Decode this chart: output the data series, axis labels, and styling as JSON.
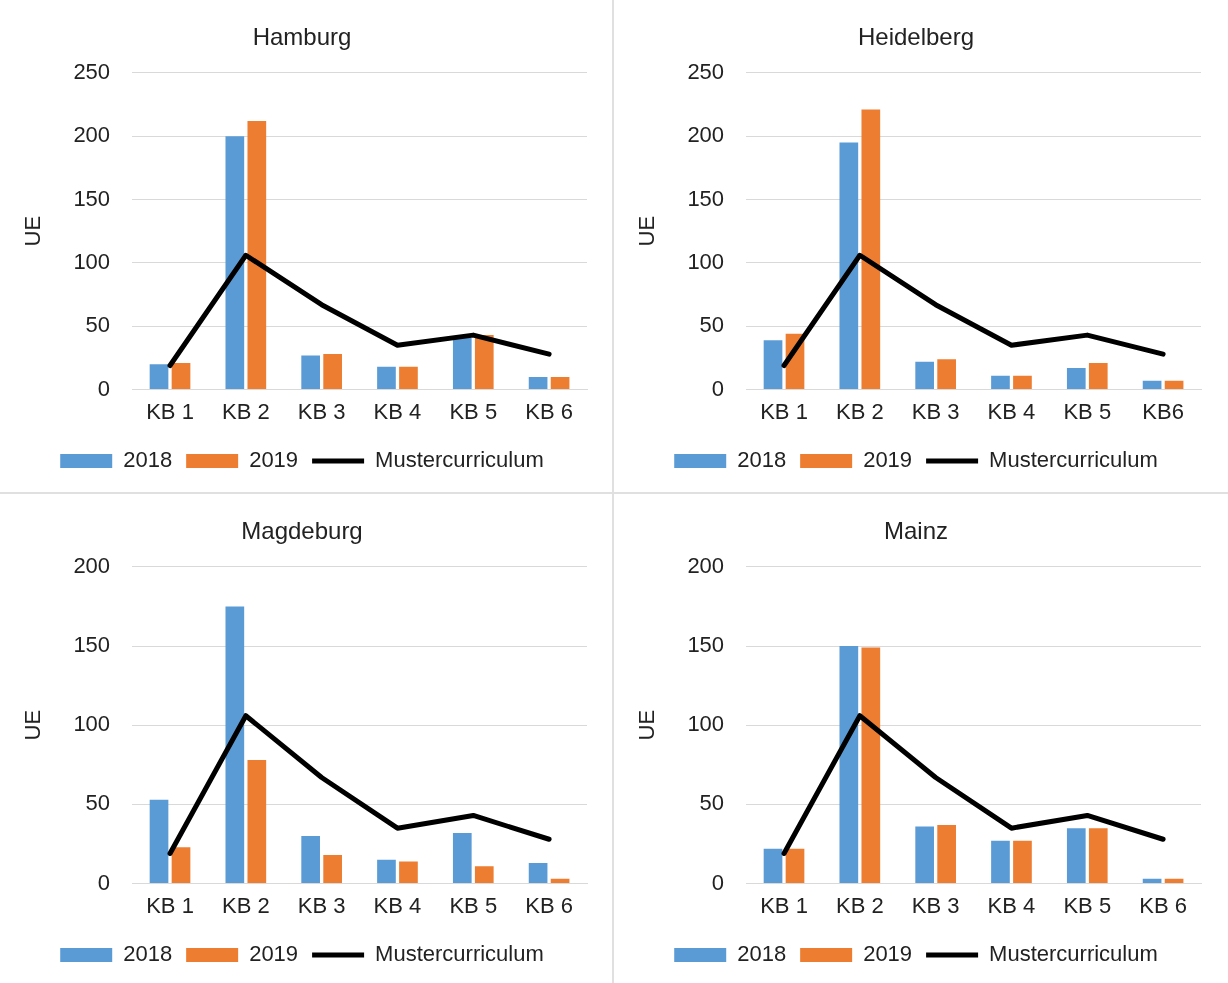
{
  "chart_data": [
    {
      "type": "bar",
      "title": "Hamburg",
      "ylabel": "UE",
      "categories": [
        "KB 1",
        "KB 2",
        "KB 3",
        "KB 4",
        "KB 5",
        "KB 6"
      ],
      "series": [
        {
          "name": "2018",
          "color": "#5b9bd5",
          "values": [
            20,
            200,
            27,
            18,
            41,
            10
          ]
        },
        {
          "name": "2019",
          "color": "#ed7d31",
          "values": [
            21,
            212,
            28,
            18,
            43,
            10
          ]
        },
        {
          "name": "Mustercurriculum",
          "type": "line",
          "color": "#000000",
          "values": [
            19,
            106,
            67,
            35,
            43,
            28
          ]
        }
      ],
      "ylim": [
        0,
        250
      ],
      "yticks": [
        0,
        50,
        100,
        150,
        200,
        250
      ],
      "grid": "y",
      "legend": "bottom",
      "marker": "none",
      "line_style": "solid"
    },
    {
      "type": "bar",
      "title": "Heidelberg",
      "ylabel": "UE",
      "categories": [
        "KB 1",
        "KB 2",
        "KB 3",
        "KB 4",
        "KB 5",
        "KB6"
      ],
      "series": [
        {
          "name": "2018",
          "color": "#5b9bd5",
          "values": [
            39,
            195,
            22,
            11,
            17,
            7
          ]
        },
        {
          "name": "2019",
          "color": "#ed7d31",
          "values": [
            44,
            221,
            24,
            11,
            21,
            7
          ]
        },
        {
          "name": "Mustercurriculum",
          "type": "line",
          "color": "#000000",
          "values": [
            19,
            106,
            67,
            35,
            43,
            28
          ]
        }
      ],
      "ylim": [
        0,
        250
      ],
      "yticks": [
        0,
        50,
        100,
        150,
        200,
        250
      ],
      "grid": "y",
      "legend": "bottom",
      "marker": "none",
      "line_style": "solid"
    },
    {
      "type": "bar",
      "title": "Magdeburg",
      "ylabel": "UE",
      "categories": [
        "KB 1",
        "KB 2",
        "KB 3",
        "KB 4",
        "KB 5",
        "KB 6"
      ],
      "series": [
        {
          "name": "2018",
          "color": "#5b9bd5",
          "values": [
            53,
            175,
            30,
            15,
            32,
            13
          ]
        },
        {
          "name": "2019",
          "color": "#ed7d31",
          "values": [
            23,
            78,
            18,
            14,
            11,
            3
          ]
        },
        {
          "name": "Mustercurriculum",
          "type": "line",
          "color": "#000000",
          "values": [
            19,
            106,
            67,
            35,
            43,
            28
          ]
        }
      ],
      "ylim": [
        0,
        200
      ],
      "yticks": [
        0,
        50,
        100,
        150,
        200
      ],
      "grid": "y",
      "legend": "bottom",
      "marker": "none",
      "line_style": "solid"
    },
    {
      "type": "bar",
      "title": "Mainz",
      "ylabel": "UE",
      "categories": [
        "KB 1",
        "KB 2",
        "KB 3",
        "KB 4",
        "KB 5",
        "KB 6"
      ],
      "series": [
        {
          "name": "2018",
          "color": "#5b9bd5",
          "values": [
            22,
            150,
            36,
            27,
            35,
            3
          ]
        },
        {
          "name": "2019",
          "color": "#ed7d31",
          "values": [
            22,
            149,
            37,
            27,
            35,
            3
          ]
        },
        {
          "name": "Mustercurriculum",
          "type": "line",
          "color": "#000000",
          "values": [
            19,
            106,
            67,
            35,
            43,
            28
          ]
        }
      ],
      "ylim": [
        0,
        200
      ],
      "yticks": [
        0,
        50,
        100,
        150,
        200
      ],
      "grid": "y",
      "legend": "bottom",
      "marker": "none",
      "line_style": "solid"
    }
  ]
}
